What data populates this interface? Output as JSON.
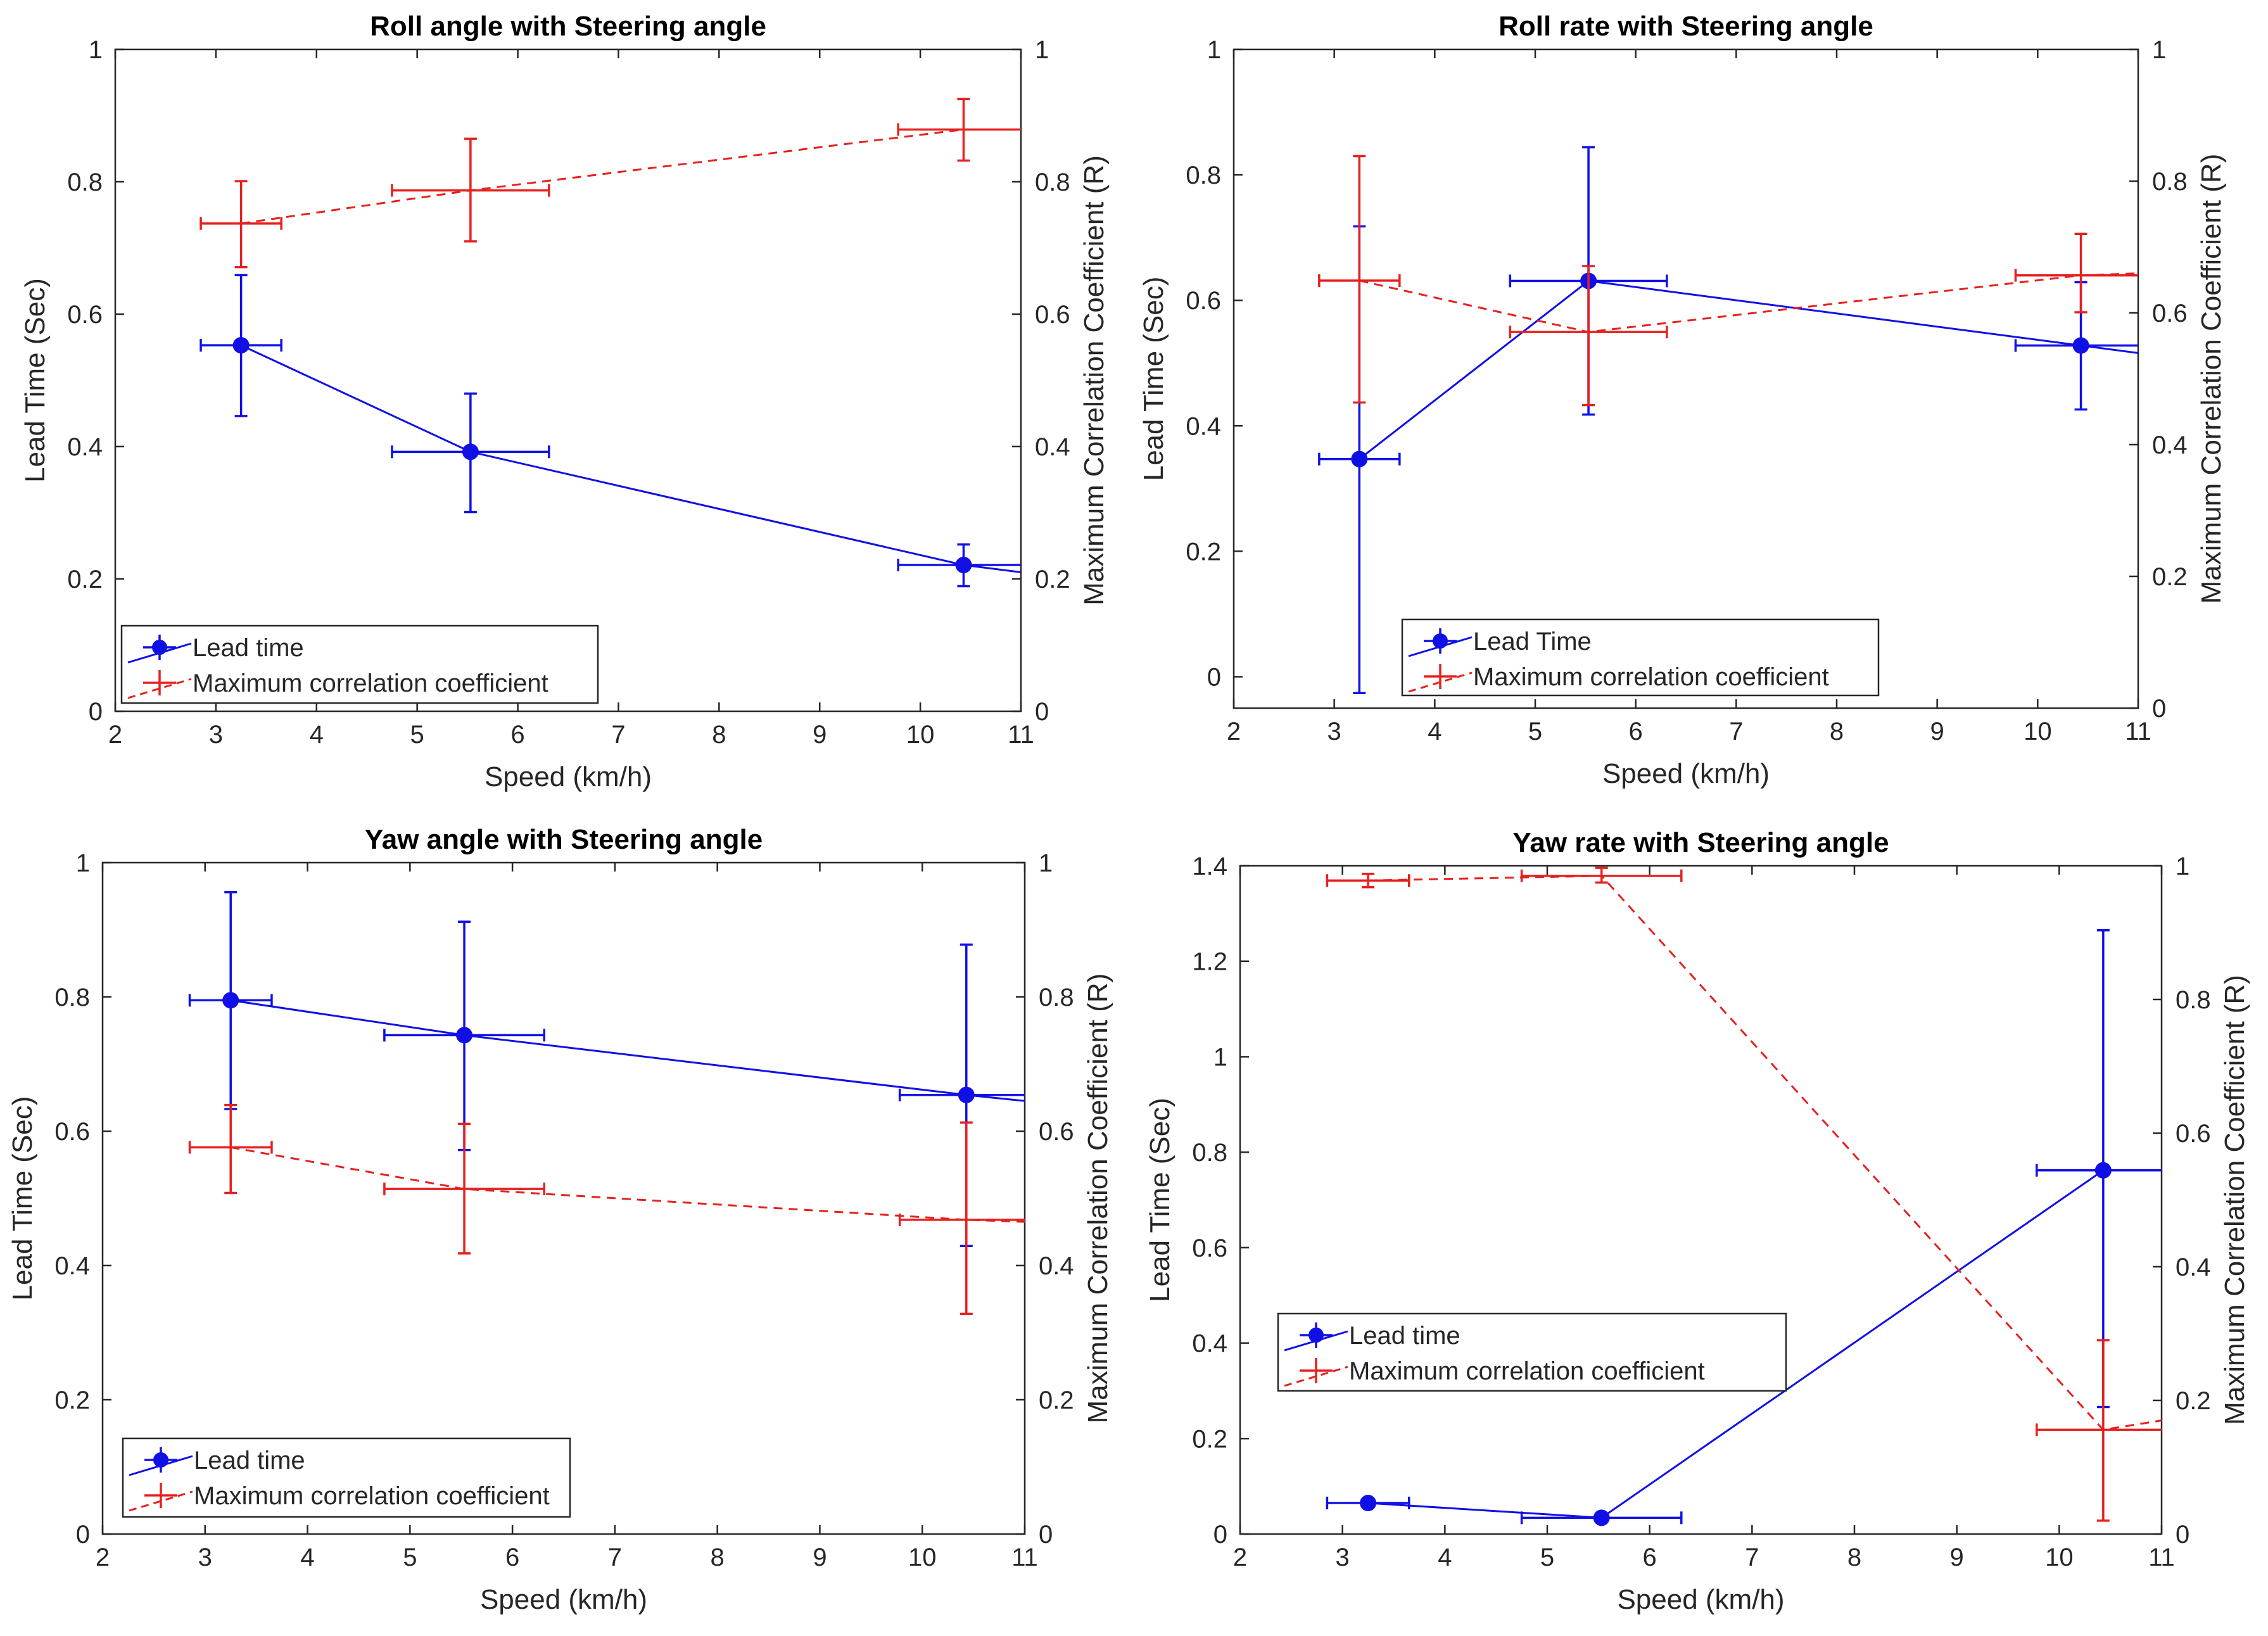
{
  "colors": {
    "blue": "#1010e6",
    "red": "#e6201f",
    "axis": "#262626"
  },
  "legend_labels": {
    "lead": "Lead time",
    "lead_alt": "Lead Time",
    "corr": "Maximum correlation coefficient"
  },
  "chart_data": [
    {
      "type": "line",
      "title": "Roll angle with Steering angle",
      "xlabel": "Speed (km/h)",
      "ylabel_left": "Lead Time (Sec)",
      "ylabel_right": "Maximum Correlation Coefficient (R)",
      "xlim": [
        2,
        11
      ],
      "xticks": [
        2,
        3,
        4,
        5,
        6,
        7,
        8,
        9,
        10,
        11
      ],
      "xtick_labels": [
        "2",
        "3",
        "4",
        "5",
        "6",
        "7",
        "8",
        "9",
        "10",
        "11"
      ],
      "ylim_left": [
        0,
        1
      ],
      "yticks_left": [
        0,
        0.2,
        0.4,
        0.6,
        0.8,
        1
      ],
      "ytick_labels_left": [
        "0",
        "0.2",
        "0.4",
        "0.6",
        "0.8",
        "1"
      ],
      "ylim_right": [
        0,
        1
      ],
      "yticks_right": [
        0,
        0.2,
        0.4,
        0.6,
        0.8,
        1
      ],
      "ytick_labels_right": [
        "0",
        "0.2",
        "0.4",
        "0.6",
        "0.8",
        "1"
      ],
      "legend_style": "lead",
      "series": [
        {
          "name": "Lead time",
          "axis": "left",
          "style": "solid-marker",
          "x": [
            3.25,
            5.53,
            10.43
          ],
          "y": [
            0.553,
            0.392,
            0.221
          ],
          "xerr": [
            0.4,
            0.78,
            0.65
          ],
          "yerr": [
            [
              0.107,
              0.106
            ],
            [
              0.091,
              0.088
            ],
            [
              0.032,
              0.031
            ]
          ],
          "extend_to": [
            11,
            0.21
          ]
        },
        {
          "name": "Maximum correlation coefficient",
          "axis": "right",
          "style": "dashed",
          "x": [
            3.25,
            5.53,
            10.43
          ],
          "y": [
            0.737,
            0.787,
            0.879
          ],
          "xerr": [
            0.4,
            0.78,
            0.65
          ],
          "yerr": [
            [
              0.066,
              0.064
            ],
            [
              0.077,
              0.078
            ],
            [
              0.047,
              0.046
            ]
          ],
          "extend_to": [
            11,
            0.879
          ]
        }
      ]
    },
    {
      "type": "line",
      "title": "Roll rate with Steering angle",
      "xlabel": "Speed (km/h)",
      "ylabel_left": "Lead Time (Sec)",
      "ylabel_right": "Maximum Correlation Coefficient (R)",
      "xlim": [
        2,
        11
      ],
      "xticks": [
        2,
        3,
        4,
        5,
        6,
        7,
        8,
        9,
        10,
        11
      ],
      "xtick_labels": [
        "2",
        "3",
        "4",
        "5",
        "6",
        "7",
        "8",
        "9",
        "10",
        "11"
      ],
      "ylim_left": [
        -0.05,
        1
      ],
      "yticks_left": [
        0,
        0.2,
        0.4,
        0.6,
        0.8,
        1
      ],
      "ytick_labels_left": [
        "0",
        "0.2",
        "0.4",
        "0.6",
        "0.8",
        "1"
      ],
      "ylim_right": [
        0,
        1
      ],
      "yticks_right": [
        0,
        0.2,
        0.4,
        0.6,
        0.8,
        1
      ],
      "ytick_labels_right": [
        "0",
        "0.2",
        "0.4",
        "0.6",
        "0.8",
        "1"
      ],
      "legend_style": "lead_alt",
      "series": [
        {
          "name": "Lead Time",
          "axis": "left",
          "style": "solid-marker",
          "x": [
            3.25,
            5.53,
            10.43
          ],
          "y": [
            0.347,
            0.631,
            0.528
          ],
          "xerr": [
            0.4,
            0.78,
            0.65
          ],
          "yerr": [
            [
              0.373,
              0.371
            ],
            [
              0.213,
              0.213
            ],
            [
              0.102,
              0.101
            ]
          ],
          "extend_to": [
            11,
            0.516
          ]
        },
        {
          "name": "Maximum correlation coefficient",
          "axis": "right",
          "style": "dashed",
          "x": [
            3.25,
            5.53,
            10.43
          ],
          "y": [
            0.649,
            0.571,
            0.657
          ],
          "xerr": [
            0.4,
            0.78,
            0.65
          ],
          "yerr": [
            [
              0.185,
              0.189
            ],
            [
              0.111,
              0.1
            ],
            [
              0.056,
              0.063
            ]
          ],
          "extend_to": [
            11,
            0.66
          ]
        }
      ]
    },
    {
      "type": "line",
      "title": "Yaw angle with Steering angle",
      "xlabel": "Speed (km/h)",
      "ylabel_left": "Lead Time (Sec)",
      "ylabel_right": "Maximum Correlation Coefficient (R)",
      "xlim": [
        2,
        11
      ],
      "xticks": [
        2,
        3,
        4,
        5,
        6,
        7,
        8,
        9,
        10,
        11
      ],
      "xtick_labels": [
        "2",
        "3",
        "4",
        "5",
        "6",
        "7",
        "8",
        "9",
        "10",
        "11"
      ],
      "ylim_left": [
        0,
        1
      ],
      "yticks_left": [
        0,
        0.2,
        0.4,
        0.6,
        0.8,
        1
      ],
      "ytick_labels_left": [
        "0",
        "0.2",
        "0.4",
        "0.6",
        "0.8",
        "1"
      ],
      "ylim_right": [
        0,
        1
      ],
      "yticks_right": [
        0,
        0.2,
        0.4,
        0.6,
        0.8,
        1
      ],
      "ytick_labels_right": [
        "0",
        "0.2",
        "0.4",
        "0.6",
        "0.8",
        "1"
      ],
      "legend_style": "lead",
      "series": [
        {
          "name": "Lead time",
          "axis": "left",
          "style": "solid-marker",
          "x": [
            3.25,
            5.53,
            10.43
          ],
          "y": [
            0.795,
            0.743,
            0.654
          ],
          "xerr": [
            0.4,
            0.78,
            0.65
          ],
          "yerr": [
            [
              0.162,
              0.161
            ],
            [
              0.171,
              0.169
            ],
            [
              0.225,
              0.224
            ]
          ],
          "extend_to": [
            11,
            0.645
          ]
        },
        {
          "name": "Maximum correlation coefficient",
          "axis": "right",
          "style": "dashed",
          "x": [
            3.25,
            5.53,
            10.43
          ],
          "y": [
            0.576,
            0.514,
            0.468
          ],
          "xerr": [
            0.4,
            0.78,
            0.65
          ],
          "yerr": [
            [
              0.068,
              0.063
            ],
            [
              0.096,
              0.097
            ],
            [
              0.14,
              0.145
            ]
          ],
          "extend_to": [
            11,
            0.465
          ]
        }
      ]
    },
    {
      "type": "line",
      "title": "Yaw rate with Steering angle",
      "xlabel": "Speed (km/h)",
      "ylabel_left": "Lead Time (Sec)",
      "ylabel_right": "Maximum Correlation Coefficient (R)",
      "xlim": [
        2,
        11
      ],
      "xticks": [
        2,
        3,
        4,
        5,
        6,
        7,
        8,
        9,
        10,
        11
      ],
      "xtick_labels": [
        "2",
        "3",
        "4",
        "5",
        "6",
        "7",
        "8",
        "9",
        "10",
        "11"
      ],
      "ylim_left": [
        0,
        1.4
      ],
      "yticks_left": [
        0,
        0.2,
        0.4,
        0.6,
        0.8,
        1,
        1.2,
        1.4
      ],
      "ytick_labels_left": [
        "0",
        "0.2",
        "0.4",
        "0.6",
        "0.8",
        "1",
        "1.2",
        "1.4"
      ],
      "ylim_right": [
        0,
        1
      ],
      "yticks_right": [
        0,
        0.2,
        0.4,
        0.6,
        0.8,
        1
      ],
      "ytick_labels_right": [
        "0",
        "0.2",
        "0.4",
        "0.6",
        "0.8",
        "1"
      ],
      "legend_style": "lead",
      "series": [
        {
          "name": "Lead time",
          "axis": "left",
          "style": "solid-marker",
          "x": [
            3.25,
            5.53,
            10.43
          ],
          "y": [
            0.065,
            0.034,
            0.762
          ],
          "xerr": [
            0.4,
            0.78,
            0.65
          ],
          "yerr": [
            [
              0.005,
              0.005
            ],
            [
              0.004,
              0.004
            ],
            [
              0.496,
              0.503
            ]
          ],
          "extend_to": [
            11,
            0.762
          ]
        },
        {
          "name": "Maximum correlation coefficient",
          "axis": "right",
          "style": "dashed",
          "x": [
            3.25,
            5.53,
            10.43
          ],
          "y": [
            0.978,
            0.985,
            0.156
          ],
          "xerr": [
            0.4,
            0.78,
            0.65
          ],
          "yerr": [
            [
              0.01,
              0.01
            ],
            [
              0.01,
              0.012
            ],
            [
              0.136,
              0.134
            ]
          ],
          "extend_to": [
            11,
            0.17
          ]
        }
      ]
    }
  ]
}
